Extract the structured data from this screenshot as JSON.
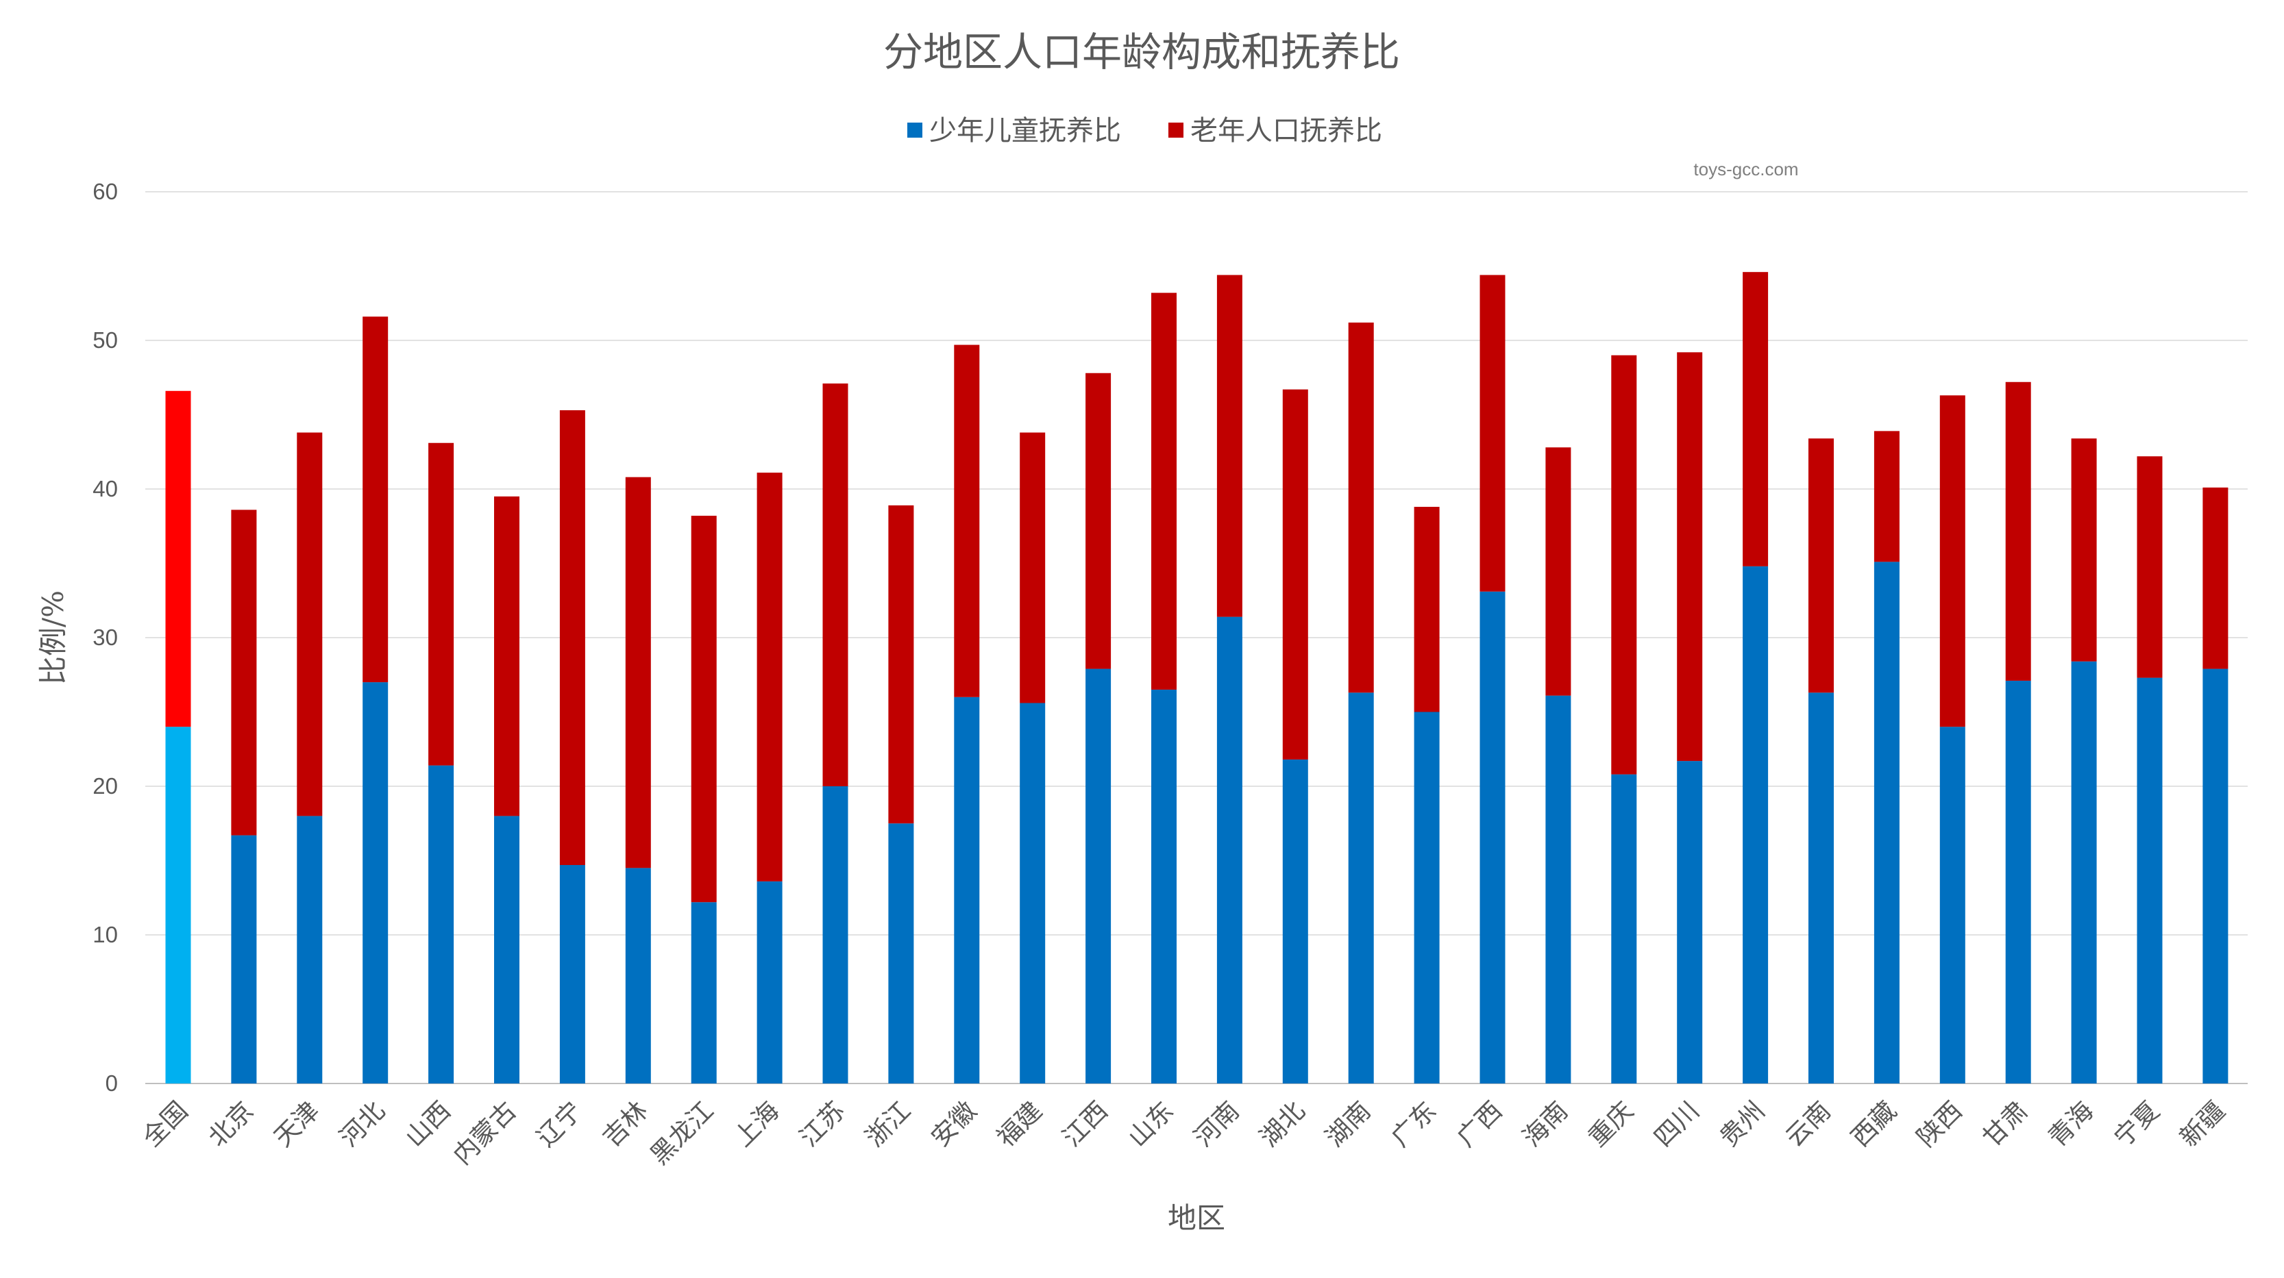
{
  "chart_data": {
    "type": "bar",
    "stacked": true,
    "title": "分地区人口年龄构成和抚养比",
    "xlabel": "地区",
    "ylabel": "比例/%",
    "ylim": [
      0,
      60
    ],
    "yticks": [
      0,
      10,
      20,
      30,
      40,
      50,
      60
    ],
    "grid": true,
    "legend_position": "top",
    "watermark": "toys-gcc.com",
    "categories": [
      "全国",
      "北京",
      "天津",
      "河北",
      "山西",
      "内蒙古",
      "辽宁",
      "吉林",
      "黑龙江",
      "上海",
      "江苏",
      "浙江",
      "安徽",
      "福建",
      "江西",
      "山东",
      "河南",
      "湖北",
      "湖南",
      "广东",
      "广西",
      "海南",
      "重庆",
      "四川",
      "贵州",
      "云南",
      "西藏",
      "陕西",
      "甘肃",
      "青海",
      "宁夏",
      "新疆"
    ],
    "series": [
      {
        "name": "少年儿童抚养比",
        "color": "#0070c0",
        "values": [
          24.0,
          16.7,
          18.0,
          27.0,
          21.4,
          18.0,
          14.7,
          14.5,
          12.2,
          13.6,
          20.0,
          17.5,
          26.0,
          25.6,
          27.9,
          26.5,
          31.4,
          21.8,
          26.3,
          25.0,
          33.1,
          26.1,
          20.8,
          21.7,
          34.8,
          26.3,
          35.1,
          24.0,
          27.1,
          28.4,
          27.3,
          27.9
        ]
      },
      {
        "name": "老年人口抚养比",
        "color": "#c00000",
        "values": [
          22.6,
          21.9,
          25.8,
          24.6,
          21.7,
          21.5,
          30.6,
          26.3,
          26.0,
          27.5,
          27.1,
          21.4,
          23.7,
          18.2,
          19.9,
          26.7,
          23.0,
          24.9,
          24.9,
          13.8,
          21.3,
          16.7,
          28.2,
          27.5,
          19.8,
          17.1,
          8.8,
          22.3,
          20.1,
          15.0,
          14.9,
          12.2
        ]
      }
    ],
    "highlight": {
      "category": "全国",
      "colors": [
        "#00b0f0",
        "#ff0000"
      ]
    }
  }
}
